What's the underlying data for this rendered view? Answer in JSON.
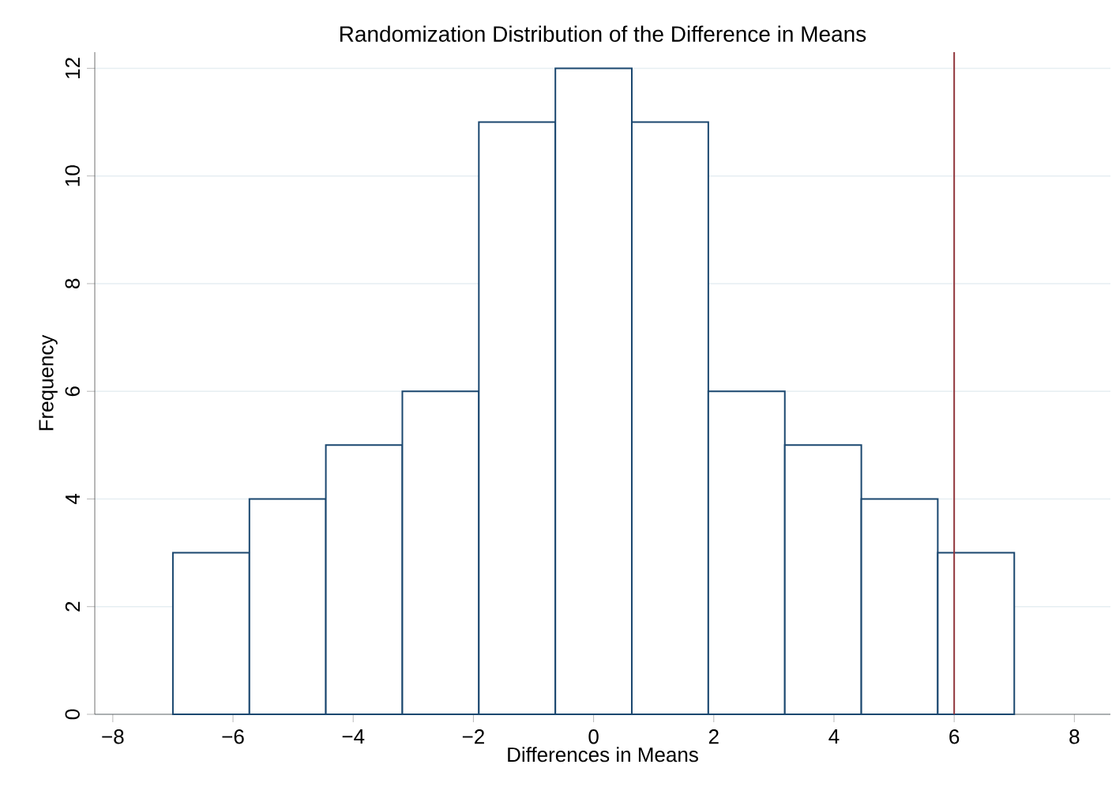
{
  "chart_data": {
    "type": "histogram",
    "title": "Randomization Distribution of the Difference in Means",
    "xlabel": "Differences in Means",
    "ylabel": "Frequency",
    "bins": [
      -7,
      -5.727,
      -4.455,
      -3.182,
      -1.909,
      -0.636,
      0.636,
      1.909,
      3.182,
      4.455,
      5.727,
      7
    ],
    "values": [
      3,
      4,
      5,
      6,
      11,
      12,
      11,
      6,
      5,
      4,
      3
    ],
    "color": "#1a476f",
    "xlim": [
      -8.3,
      8.6
    ],
    "xticks": [
      {
        "value": -8,
        "label": "−8"
      },
      {
        "value": -6,
        "label": "−6"
      },
      {
        "value": -4,
        "label": "−4"
      },
      {
        "value": -2,
        "label": "−2"
      },
      0,
      2,
      4,
      6,
      8
    ],
    "ylim": [
      0,
      12.3
    ],
    "yticks": [
      0,
      2,
      4,
      6,
      8,
      10,
      12
    ],
    "ref_lines": [
      {
        "axis": "x",
        "value": 6,
        "color": "#90353b"
      }
    ],
    "grid": "y"
  }
}
